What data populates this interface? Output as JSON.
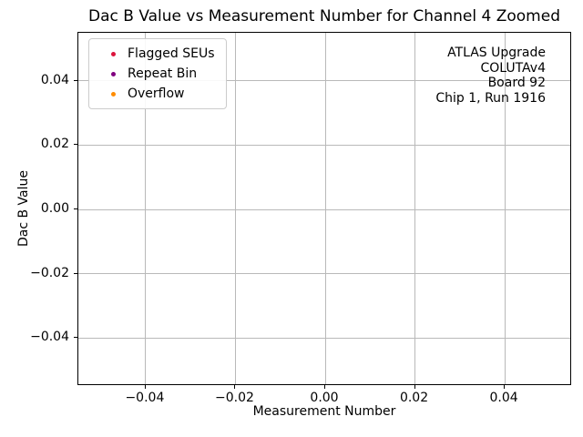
{
  "chart_data": {
    "type": "scatter",
    "title": "Dac B Value vs Measurement Number for Channel 4 Zoomed",
    "xlabel": "Measurement Number",
    "ylabel": "Dac B Value",
    "xlim": [
      -0.055,
      0.055
    ],
    "ylim": [
      -0.055,
      0.055
    ],
    "xticks": [
      -0.04,
      -0.02,
      0.0,
      0.02,
      0.04
    ],
    "yticks": [
      -0.04,
      -0.02,
      0.0,
      0.02,
      0.04
    ],
    "grid": true,
    "grid_color": "#b9b9b9",
    "axis_color": "#000000",
    "background_color": "#ffffff",
    "legend_position": "upper-left",
    "series": [
      {
        "name": "Flagged SEUs",
        "color": "#dc143c",
        "marker": "dot",
        "points": []
      },
      {
        "name": "Repeat Bin",
        "color": "#800080",
        "marker": "dot",
        "points": []
      },
      {
        "name": "Overflow",
        "color": "#ff8c00",
        "marker": "dot",
        "points": []
      }
    ],
    "annotation": {
      "position": "upper-right",
      "align": "right",
      "lines": [
        "ATLAS Upgrade",
        "COLUTAv4",
        "Board 92",
        "Chip 1, Run 1916"
      ]
    }
  }
}
